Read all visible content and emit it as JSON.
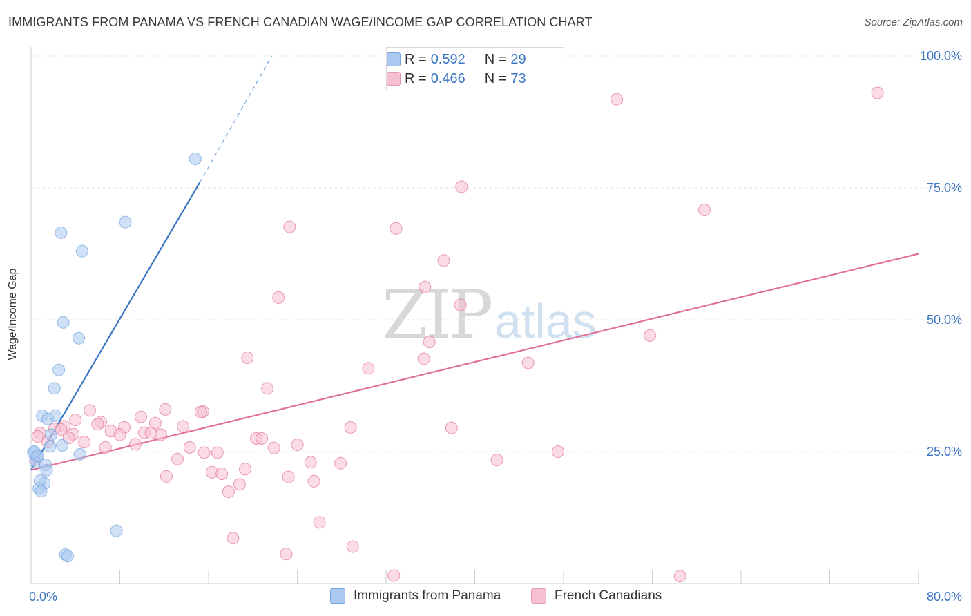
{
  "header": {
    "title": "IMMIGRANTS FROM PANAMA VS FRENCH CANADIAN WAGE/INCOME GAP CORRELATION CHART",
    "source": "Source: ZipAtlas.com"
  },
  "watermark": {
    "zip": "ZIP",
    "atlas": "atlas"
  },
  "legend_top": {
    "rows": [
      {
        "r_label": "R =",
        "r_value": "0.592",
        "n_label": "N =",
        "n_value": "29",
        "color": "#aac8f0"
      },
      {
        "r_label": "R =",
        "r_value": "0.466",
        "n_label": "N =",
        "n_value": "73",
        "color": "#f7c0d2"
      }
    ]
  },
  "legend_bottom": {
    "items": [
      {
        "label": "Immigrants from Panama",
        "color": "#aac8f0"
      },
      {
        "label": "French Canadians",
        "color": "#f7c0d2"
      }
    ]
  },
  "chart_data": {
    "type": "scatter",
    "title": "IMMIGRANTS FROM PANAMA VS FRENCH CANADIAN WAGE/INCOME GAP CORRELATION CHART",
    "xlabel": "",
    "ylabel": "Wage/Income Gap",
    "xlim": [
      0,
      80
    ],
    "ylim": [
      0,
      105
    ],
    "x_tick_labels": [
      "0.0%",
      "80.0%"
    ],
    "y_ticks": [
      25,
      50,
      75,
      100
    ],
    "y_tick_labels": [
      "25.0%",
      "50.0%",
      "75.0%",
      "100.0%"
    ],
    "grid": true,
    "legend_position": "top-center",
    "series": [
      {
        "name": "Immigrants from Panama",
        "color": "#6fa3e0",
        "fill": "#aac8f0",
        "trend": {
          "x0": 0,
          "y0": 21.5,
          "x1": 15.2,
          "y1": 76,
          "dash_to_x": 21.7,
          "dash_to_y": 100
        },
        "points": [
          [
            14.8,
            80.5
          ],
          [
            8.5,
            68.5
          ],
          [
            2.7,
            66.5
          ],
          [
            4.6,
            63
          ],
          [
            2.9,
            49.5
          ],
          [
            4.3,
            46.5
          ],
          [
            2.5,
            40.5
          ],
          [
            2.1,
            37
          ],
          [
            1.0,
            31.8
          ],
          [
            1.5,
            31.2
          ],
          [
            2.2,
            31.8
          ],
          [
            1.8,
            28.2
          ],
          [
            1.7,
            26
          ],
          [
            2.8,
            26.2
          ],
          [
            4.4,
            24.5
          ],
          [
            0.3,
            25
          ],
          [
            0.5,
            24
          ],
          [
            0.4,
            23
          ],
          [
            1.3,
            22.5
          ],
          [
            1.4,
            21.5
          ],
          [
            1.2,
            19
          ],
          [
            0.8,
            19.5
          ],
          [
            0.7,
            18
          ],
          [
            0.9,
            17.5
          ],
          [
            7.7,
            10
          ],
          [
            3.1,
            5.5
          ],
          [
            3.3,
            5.2
          ],
          [
            0.2,
            24.8
          ],
          [
            0.6,
            24.2
          ]
        ]
      },
      {
        "name": "French Canadians",
        "color": "#e07098",
        "fill": "#f7c0d2",
        "trend": {
          "x0": 0,
          "y0": 21.5,
          "x1": 80,
          "y1": 62.5
        },
        "points": [
          [
            76.3,
            93
          ],
          [
            52.8,
            91.8
          ],
          [
            38.8,
            75.2
          ],
          [
            60.7,
            70.8
          ],
          [
            23.3,
            67.6
          ],
          [
            32.9,
            67.3
          ],
          [
            37.2,
            61.2
          ],
          [
            22.3,
            54.2
          ],
          [
            35.5,
            56.2
          ],
          [
            38.7,
            52.8
          ],
          [
            55.8,
            47.0
          ],
          [
            35.9,
            45.8
          ],
          [
            19.5,
            42.8
          ],
          [
            35.4,
            42.6
          ],
          [
            44.8,
            41.8
          ],
          [
            30.4,
            40.8
          ],
          [
            21.3,
            37.0
          ],
          [
            5.3,
            32.8
          ],
          [
            12.1,
            33.0
          ],
          [
            15.5,
            32.6
          ],
          [
            15.3,
            32.5
          ],
          [
            4.0,
            31.0
          ],
          [
            6.3,
            30.6
          ],
          [
            9.9,
            31.6
          ],
          [
            11.2,
            30.4
          ],
          [
            6.0,
            30.2
          ],
          [
            3.0,
            29.8
          ],
          [
            8.4,
            29.6
          ],
          [
            13.7,
            29.8
          ],
          [
            28.8,
            29.6
          ],
          [
            37.9,
            29.5
          ],
          [
            2.1,
            29.3
          ],
          [
            7.2,
            28.9
          ],
          [
            10.2,
            28.6
          ],
          [
            0.8,
            28.5
          ],
          [
            0.6,
            27.9
          ],
          [
            3.8,
            28.3
          ],
          [
            8.0,
            28.2
          ],
          [
            10.8,
            28.5
          ],
          [
            11.7,
            28.2
          ],
          [
            3.4,
            27.6
          ],
          [
            20.3,
            27.5
          ],
          [
            20.8,
            27.5
          ],
          [
            4.8,
            26.8
          ],
          [
            9.4,
            26.4
          ],
          [
            24.0,
            26.3
          ],
          [
            6.7,
            25.8
          ],
          [
            14.3,
            25.8
          ],
          [
            21.9,
            25.7
          ],
          [
            47.5,
            25.0
          ],
          [
            15.6,
            24.8
          ],
          [
            16.8,
            24.8
          ],
          [
            13.2,
            23.6
          ],
          [
            25.2,
            23.0
          ],
          [
            27.9,
            22.8
          ],
          [
            42.0,
            23.4
          ],
          [
            19.3,
            21.7
          ],
          [
            16.3,
            21.1
          ],
          [
            17.2,
            20.8
          ],
          [
            12.2,
            20.3
          ],
          [
            23.2,
            20.2
          ],
          [
            25.5,
            19.4
          ],
          [
            18.8,
            18.8
          ],
          [
            17.8,
            17.4
          ],
          [
            26.0,
            11.6
          ],
          [
            18.2,
            8.6
          ],
          [
            23.0,
            5.6
          ],
          [
            29.0,
            7.0
          ],
          [
            32.7,
            1.5
          ],
          [
            58.5,
            1.4
          ],
          [
            1.5,
            26.8
          ],
          [
            0.4,
            23.5
          ],
          [
            2.7,
            29.2
          ]
        ]
      }
    ]
  }
}
